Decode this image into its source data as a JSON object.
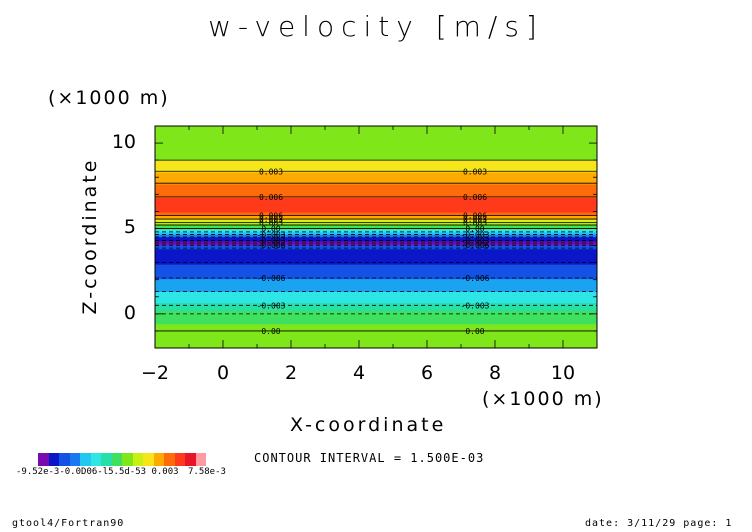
{
  "chart_data": {
    "type": "contour",
    "title": "w-velocity [m/s]",
    "xlabel": "X-coordinate",
    "ylabel": "Z-coordinate",
    "x_unit": "(×1000 m)",
    "y_unit": "(×1000 m)",
    "xlim": [
      -2,
      11
    ],
    "ylim": [
      -2,
      11
    ],
    "x_ticks": [
      -2,
      0,
      2,
      4,
      6,
      8,
      10
    ],
    "y_ticks": [
      0,
      5,
      10
    ],
    "contour_interval_text": "CONTOUR INTERVAL = 1.500E-03",
    "contour_label_x": [
      1,
      7
    ],
    "bands": [
      {
        "from": -2.0,
        "to": -0.6,
        "color": "#7fe61a"
      },
      {
        "from": -0.6,
        "to": 0.2,
        "color": "#3fe060"
      },
      {
        "from": 0.2,
        "to": 0.65,
        "color": "#26e0a8"
      },
      {
        "from": 0.65,
        "to": 1.3,
        "color": "#2ee6e6"
      },
      {
        "from": 1.3,
        "to": 2.05,
        "color": "#1aa3f0"
      },
      {
        "from": 2.05,
        "to": 2.9,
        "color": "#1452e6"
      },
      {
        "from": 2.9,
        "to": 3.8,
        "color": "#0a16c8"
      },
      {
        "from": 3.8,
        "to": 4.05,
        "color": "#1452e6"
      },
      {
        "from": 4.05,
        "to": 4.25,
        "color": "#7a0ab0"
      },
      {
        "from": 4.25,
        "to": 4.5,
        "color": "#0a16c8"
      },
      {
        "from": 4.5,
        "to": 4.65,
        "color": "#1a78f0"
      },
      {
        "from": 4.65,
        "to": 4.8,
        "color": "#22c8f0"
      },
      {
        "from": 4.8,
        "to": 4.95,
        "color": "#2ee6e6"
      },
      {
        "from": 4.95,
        "to": 5.15,
        "color": "#3fe060"
      },
      {
        "from": 5.15,
        "to": 5.3,
        "color": "#7fe61a"
      },
      {
        "from": 5.3,
        "to": 5.45,
        "color": "#c8f014"
      },
      {
        "from": 5.45,
        "to": 5.55,
        "color": "#f5e61a"
      },
      {
        "from": 5.55,
        "to": 5.75,
        "color": "#ffaa00"
      },
      {
        "from": 5.75,
        "to": 5.95,
        "color": "#ff6a0a"
      },
      {
        "from": 5.95,
        "to": 6.8,
        "color": "#ff3a1a"
      },
      {
        "from": 6.8,
        "to": 7.6,
        "color": "#ff6a0a"
      },
      {
        "from": 7.6,
        "to": 8.3,
        "color": "#ffaa00"
      },
      {
        "from": 8.3,
        "to": 9.0,
        "color": "#f5e61a"
      },
      {
        "from": 9.0,
        "to": 11.0,
        "color": "#7fe61a"
      }
    ],
    "contours": [
      {
        "z": -1.0,
        "dashed": false,
        "label": "0.00"
      },
      {
        "z": 0.0,
        "dashed": true,
        "label": ""
      },
      {
        "z": 0.5,
        "dashed": true,
        "label": "-0.003"
      },
      {
        "z": 1.3,
        "dashed": true,
        "label": ""
      },
      {
        "z": 2.1,
        "dashed": true,
        "label": "-0.006"
      },
      {
        "z": 3.0,
        "dashed": true,
        "label": ""
      },
      {
        "z": 3.85,
        "dashed": true,
        "label": ""
      },
      {
        "z": 4.02,
        "dashed": true,
        "label": "-0.006"
      },
      {
        "z": 4.15,
        "dashed": true,
        "label": ""
      },
      {
        "z": 4.3,
        "dashed": true,
        "label": "-0.003"
      },
      {
        "z": 4.5,
        "dashed": true,
        "label": ""
      },
      {
        "z": 4.65,
        "dashed": true,
        "label": "-0.003"
      },
      {
        "z": 4.8,
        "dashed": true,
        "label": ""
      },
      {
        "z": 5.0,
        "dashed": false,
        "label": "0.00"
      },
      {
        "z": 5.2,
        "dashed": false,
        "label": ""
      },
      {
        "z": 5.35,
        "dashed": false,
        "label": "0.003"
      },
      {
        "z": 5.55,
        "dashed": false,
        "label": "0.003"
      },
      {
        "z": 5.75,
        "dashed": false,
        "label": "0.006"
      },
      {
        "z": 6.85,
        "dashed": false,
        "label": "0.006"
      },
      {
        "z": 7.65,
        "dashed": false,
        "label": ""
      },
      {
        "z": 8.35,
        "dashed": false,
        "label": "0.003"
      },
      {
        "z": 9.0,
        "dashed": false,
        "label": ""
      }
    ],
    "colorbar": {
      "colors": [
        "#7a0ab0",
        "#0a16c8",
        "#1452e6",
        "#1a78f0",
        "#22c8f0",
        "#2ee6e6",
        "#26e0a8",
        "#3fe060",
        "#7fe61a",
        "#c8f014",
        "#f5e61a",
        "#ffaa00",
        "#ff6a0a",
        "#ff3a1a",
        "#e8142a",
        "#ff9aa0"
      ],
      "min_label": "-9.52e-3",
      "labels_text": "-9.52e-3-0.0D06-l5.5d-53 0.003",
      "max_label": "7.58e-3"
    }
  },
  "footer": {
    "left": "gtool4/Fortran90",
    "right": "date: 3/11/29 page: 1"
  }
}
